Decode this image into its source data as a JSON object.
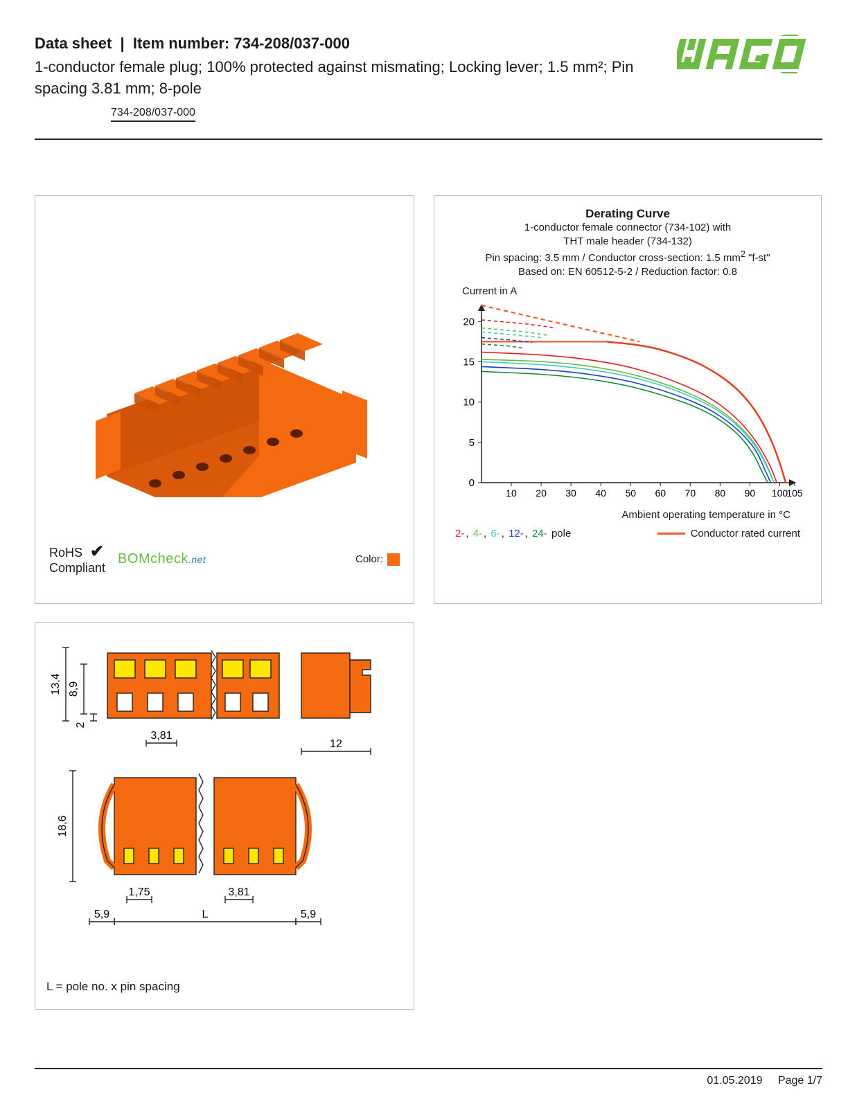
{
  "header": {
    "datasheet_label": "Data sheet",
    "item_label": "Item number:",
    "item_number": "734-208/037-000",
    "subtitle": "1-conductor female plug; 100% protected against mismating; Locking lever; 1.5 mm²; Pin spacing 3.81 mm; 8-pole",
    "part_link": "734-208/037-000",
    "logo_text": "WAGO",
    "logo_color": "#6dbb45"
  },
  "product": {
    "connector_color": "#f36a10",
    "connector_shadow": "#c94f06",
    "rohs_line1": "RoHS",
    "rohs_line2": "Compliant",
    "checkmark": "✔",
    "bomcheck_text": "BOMcheck",
    "bomcheck_suffix": ".net",
    "color_label": "Color:",
    "color_swatch": "#f36a10"
  },
  "chart": {
    "title": "Derating Curve",
    "line1": "1-conductor female connector (734-102) with",
    "line2": "THT male header (734-132)",
    "line3_a": "Pin spacing: 3.5 mm / Conductor cross-section: 1.5 mm",
    "line3_b": " \"f-st\"",
    "line4": "Based on: EN 60512-5-2 / Reduction factor: 0.8",
    "y_label": "Current in A",
    "x_label": "Ambient operating temperature in °C",
    "xlim": [
      0,
      105
    ],
    "ylim": [
      0,
      22
    ],
    "xticks": [
      10,
      20,
      30,
      40,
      50,
      60,
      70,
      80,
      90,
      100,
      105
    ],
    "yticks": [
      0,
      5,
      10,
      15,
      20
    ],
    "axis_color": "#222",
    "grid_color": "#888",
    "series": {
      "rated_solid": {
        "color": "#f05a28",
        "width": 2.2,
        "points": [
          [
            0,
            17.5
          ],
          [
            42,
            17.5
          ]
        ]
      },
      "rated_dash": {
        "color": "#f05a28",
        "width": 2.2,
        "dash": "6,5",
        "points": [
          [
            0,
            22
          ],
          [
            53,
            17.5
          ]
        ]
      },
      "rated_curve": {
        "color": "#e43e1f",
        "width": 2.5,
        "points": [
          [
            42,
            17.5
          ],
          [
            55,
            17
          ],
          [
            65,
            16
          ],
          [
            75,
            14.5
          ],
          [
            85,
            12
          ],
          [
            92,
            9
          ],
          [
            97,
            5.5
          ],
          [
            100,
            2.5
          ],
          [
            102,
            0
          ]
        ]
      },
      "p2": {
        "color": "#e31b23",
        "width": 1.6,
        "dash": "5,4",
        "points": [
          [
            0,
            20.2
          ],
          [
            15,
            19.7
          ],
          [
            25,
            19.2
          ]
        ]
      },
      "p2s": {
        "color": "#e31b23",
        "width": 1.6,
        "points": [
          [
            0,
            16.2
          ],
          [
            25,
            15.8
          ],
          [
            45,
            14.8
          ],
          [
            60,
            13.3
          ],
          [
            75,
            11
          ],
          [
            85,
            8.3
          ],
          [
            92,
            5.3
          ],
          [
            97,
            2
          ],
          [
            99,
            0
          ]
        ]
      },
      "p4": {
        "color": "#6dbb45",
        "width": 1.6,
        "dash": "5,4",
        "points": [
          [
            0,
            19.2
          ],
          [
            15,
            18.7
          ],
          [
            22,
            18.3
          ]
        ]
      },
      "p4s": {
        "color": "#6dbb45",
        "width": 1.6,
        "points": [
          [
            0,
            15.3
          ],
          [
            25,
            15
          ],
          [
            45,
            14
          ],
          [
            60,
            12.5
          ],
          [
            75,
            10.3
          ],
          [
            85,
            7.7
          ],
          [
            92,
            4.8
          ],
          [
            96,
            2
          ],
          [
            98,
            0
          ]
        ]
      },
      "p6": {
        "color": "#40c9c9",
        "width": 1.6,
        "dash": "5,4",
        "points": [
          [
            0,
            18.7
          ],
          [
            12,
            18.3
          ],
          [
            20,
            18
          ]
        ]
      },
      "p6s": {
        "color": "#40c9c9",
        "width": 1.6,
        "points": [
          [
            0,
            15
          ],
          [
            25,
            14.6
          ],
          [
            45,
            13.6
          ],
          [
            60,
            12.2
          ],
          [
            75,
            10
          ],
          [
            85,
            7.5
          ],
          [
            92,
            4.6
          ],
          [
            96,
            1.8
          ],
          [
            98,
            0
          ]
        ]
      },
      "p12": {
        "color": "#1f3fbf",
        "width": 1.6,
        "dash": "5,4",
        "points": [
          [
            0,
            18
          ],
          [
            10,
            17.7
          ],
          [
            17,
            17.4
          ]
        ]
      },
      "p12s": {
        "color": "#1f3fbf",
        "width": 1.6,
        "points": [
          [
            0,
            14.4
          ],
          [
            25,
            14
          ],
          [
            45,
            13
          ],
          [
            60,
            11.6
          ],
          [
            75,
            9.5
          ],
          [
            85,
            7
          ],
          [
            92,
            4.2
          ],
          [
            95,
            1.6
          ],
          [
            97,
            0
          ]
        ]
      },
      "p24": {
        "color": "#108838",
        "width": 1.6,
        "dash": "5,4",
        "points": [
          [
            0,
            17.2
          ],
          [
            8,
            17
          ],
          [
            14,
            16.7
          ]
        ]
      },
      "p24s": {
        "color": "#108838",
        "width": 1.6,
        "points": [
          [
            0,
            13.8
          ],
          [
            25,
            13.4
          ],
          [
            45,
            12.4
          ],
          [
            60,
            11
          ],
          [
            75,
            9
          ],
          [
            85,
            6.5
          ],
          [
            91,
            3.8
          ],
          [
            94,
            1.4
          ],
          [
            96,
            0
          ]
        ]
      }
    },
    "pole_legend": [
      {
        "label": "2-",
        "color": "#e31b23"
      },
      {
        "label": "4-",
        "color": "#6dbb45"
      },
      {
        "label": "6-",
        "color": "#40c9c9"
      },
      {
        "label": "12-",
        "color": "#1f3fbf"
      },
      {
        "label": "24-",
        "color": "#108838"
      }
    ],
    "pole_legend_suffix": " pole",
    "conductor_legend": "Conductor rated current",
    "conductor_color": "#f05a28"
  },
  "dimensions": {
    "body_color": "#f36a10",
    "accent_color": "#ffe600",
    "outline_color": "#222",
    "values": {
      "h1": "13,4",
      "h2": "8,9",
      "h3": "2",
      "pitch": "3,81",
      "side_w": "12",
      "height2": "18,6",
      "half_pitch": "1,75",
      "pitch2": "3,81",
      "edge": "5,9",
      "len": "L",
      "edge2": "5,9"
    },
    "note": "L = pole no. x pin spacing"
  },
  "footer": {
    "date": "01.05.2019",
    "page": "Page 1/7"
  }
}
